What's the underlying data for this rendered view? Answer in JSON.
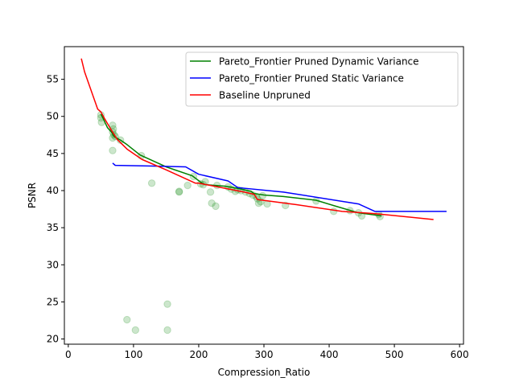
{
  "chart_data": {
    "type": "line",
    "title": "",
    "xlabel": "Compression_Ratio",
    "ylabel": "PSNR",
    "xlim": [
      -6,
      606
    ],
    "ylim": [
      19.3,
      59.4
    ],
    "xticks": [
      0,
      100,
      200,
      300,
      400,
      500,
      600
    ],
    "yticks": [
      20,
      25,
      30,
      35,
      40,
      45,
      50,
      55
    ],
    "grid": false,
    "legend_position": "top-right",
    "series": [
      {
        "name": "Pareto_Frontier Pruned Dynamic Variance",
        "color": "#008000",
        "x": [
          50,
          53,
          60,
          67,
          70,
          80,
          90,
          110,
          150,
          190,
          205,
          210,
          240,
          260,
          280,
          285,
          300,
          330,
          380,
          410,
          445,
          480
        ],
        "y": [
          50.3,
          49.8,
          48.5,
          47.8,
          47.3,
          46.8,
          46.2,
          44.8,
          43.2,
          42.0,
          41.0,
          40.8,
          40.6,
          40.3,
          39.9,
          39.6,
          39.4,
          39.2,
          38.7,
          37.9,
          37.0,
          36.6
        ]
      },
      {
        "name": "Pareto_Frontier Pruned Static Variance",
        "color": "#0000ff",
        "x": [
          68,
          72,
          130,
          180,
          200,
          245,
          260,
          330,
          445,
          470,
          580
        ],
        "y": [
          43.7,
          43.4,
          43.3,
          43.2,
          42.2,
          41.3,
          40.4,
          39.8,
          38.2,
          37.2,
          37.2
        ]
      },
      {
        "name": "Baseline Unpruned",
        "color": "#ff0000",
        "x": [
          20,
          25,
          35,
          45,
          50,
          55,
          65,
          75,
          90,
          113,
          150,
          195,
          200,
          270,
          285,
          290,
          350,
          420,
          470,
          560
        ],
        "y": [
          57.8,
          56.0,
          53.5,
          51.0,
          50.6,
          49.8,
          48.3,
          46.9,
          45.6,
          44.2,
          42.8,
          41.0,
          41.0,
          39.8,
          39.5,
          38.8,
          38.1,
          37.2,
          36.9,
          36.1
        ]
      }
    ],
    "scatter": {
      "color": "#008000",
      "alpha": 0.2,
      "points": [
        [
          50,
          50.2
        ],
        [
          50,
          49.8
        ],
        [
          51,
          49.2
        ],
        [
          68,
          48.8
        ],
        [
          69,
          48.3
        ],
        [
          68,
          47.9
        ],
        [
          70,
          47.5
        ],
        [
          68,
          47.1
        ],
        [
          72,
          47.3
        ],
        [
          68,
          45.4
        ],
        [
          80,
          46.8
        ],
        [
          112,
          44.7
        ],
        [
          128,
          41.0
        ],
        [
          170,
          39.8
        ],
        [
          170,
          39.9
        ],
        [
          183,
          40.7
        ],
        [
          192,
          41.9
        ],
        [
          203,
          40.9
        ],
        [
          207,
          40.8
        ],
        [
          210,
          41.2
        ],
        [
          218,
          39.8
        ],
        [
          220,
          38.3
        ],
        [
          226,
          37.9
        ],
        [
          228,
          40.7
        ],
        [
          245,
          40.5
        ],
        [
          250,
          40.2
        ],
        [
          256,
          39.9
        ],
        [
          260,
          40.1
        ],
        [
          265,
          40.0
        ],
        [
          272,
          39.8
        ],
        [
          278,
          39.6
        ],
        [
          283,
          39.4
        ],
        [
          288,
          39.2
        ],
        [
          290,
          38.9
        ],
        [
          292,
          38.3
        ],
        [
          295,
          38.5
        ],
        [
          298,
          39.3
        ],
        [
          305,
          38.2
        ],
        [
          333,
          38.0
        ],
        [
          380,
          38.6
        ],
        [
          407,
          37.2
        ],
        [
          432,
          37.3
        ],
        [
          445,
          37.0
        ],
        [
          450,
          36.6
        ],
        [
          476,
          36.8
        ],
        [
          478,
          36.5
        ],
        [
          90,
          22.6
        ],
        [
          103,
          21.2
        ],
        [
          152,
          24.7
        ],
        [
          152,
          21.2
        ]
      ]
    }
  }
}
